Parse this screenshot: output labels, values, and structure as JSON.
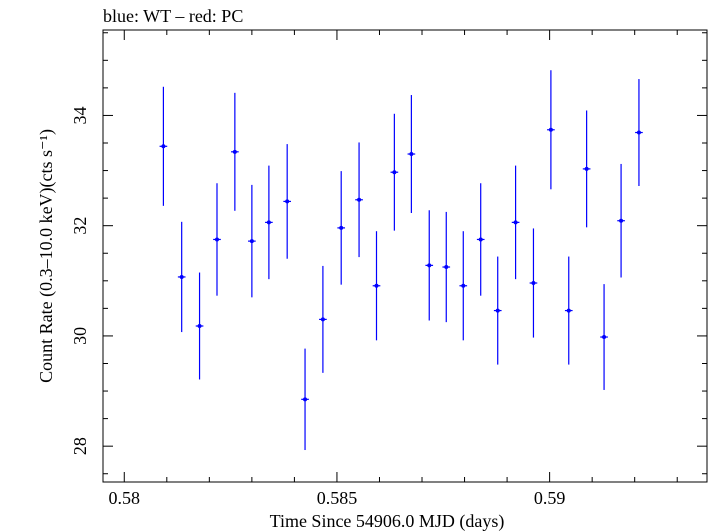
{
  "chart_data": {
    "type": "scatter",
    "title": "blue: WT – red: PC",
    "xlabel": "Time Since 54906.0 MJD (days)",
    "ylabel": "Count Rate (0.3–10.0 keV)(cts s⁻¹)",
    "xlim": [
      0.5795,
      0.5937
    ],
    "ylim": [
      27.35,
      35.55
    ],
    "xticks": [
      0.58,
      0.585,
      0.59
    ],
    "xtick_labels": [
      "0.58",
      "0.585",
      "0.59"
    ],
    "yticks": [
      28,
      30,
      32,
      34
    ],
    "ytick_labels": [
      "28",
      "30",
      "32",
      "34"
    ],
    "grid": false,
    "series": [
      {
        "color": "#0000ff",
        "points": [
          {
            "x": 0.58092,
            "y": 33.44,
            "xerr": 9e-05,
            "yerr": 1.08
          },
          {
            "x": 0.58135,
            "y": 31.07,
            "xerr": 9e-05,
            "yerr": 1.0
          },
          {
            "x": 0.58177,
            "y": 30.18,
            "xerr": 9e-05,
            "yerr": 0.97
          },
          {
            "x": 0.58218,
            "y": 31.75,
            "xerr": 9e-05,
            "yerr": 1.02
          },
          {
            "x": 0.5826,
            "y": 33.34,
            "xerr": 9e-05,
            "yerr": 1.07
          },
          {
            "x": 0.583,
            "y": 31.72,
            "xerr": 9e-05,
            "yerr": 1.02
          },
          {
            "x": 0.5834,
            "y": 32.06,
            "xerr": 9e-05,
            "yerr": 1.03
          },
          {
            "x": 0.58383,
            "y": 32.44,
            "xerr": 9e-05,
            "yerr": 1.04
          },
          {
            "x": 0.58425,
            "y": 28.85,
            "xerr": 9e-05,
            "yerr": 0.92
          },
          {
            "x": 0.58467,
            "y": 30.3,
            "xerr": 9e-05,
            "yerr": 0.97
          },
          {
            "x": 0.5851,
            "y": 31.96,
            "xerr": 9e-05,
            "yerr": 1.03
          },
          {
            "x": 0.58552,
            "y": 32.47,
            "xerr": 9e-05,
            "yerr": 1.04
          },
          {
            "x": 0.58593,
            "y": 30.91,
            "xerr": 9e-05,
            "yerr": 0.99
          },
          {
            "x": 0.58635,
            "y": 32.97,
            "xerr": 9e-05,
            "yerr": 1.06
          },
          {
            "x": 0.58675,
            "y": 33.3,
            "xerr": 9e-05,
            "yerr": 1.07
          },
          {
            "x": 0.58717,
            "y": 31.28,
            "xerr": 9e-05,
            "yerr": 1.0
          },
          {
            "x": 0.58757,
            "y": 31.25,
            "xerr": 9e-05,
            "yerr": 1.0
          },
          {
            "x": 0.58797,
            "y": 30.91,
            "xerr": 9e-05,
            "yerr": 0.99
          },
          {
            "x": 0.58838,
            "y": 31.75,
            "xerr": 9e-05,
            "yerr": 1.02
          },
          {
            "x": 0.58878,
            "y": 30.46,
            "xerr": 9e-05,
            "yerr": 0.98
          },
          {
            "x": 0.5892,
            "y": 32.06,
            "xerr": 9e-05,
            "yerr": 1.03
          },
          {
            "x": 0.58962,
            "y": 30.96,
            "xerr": 9e-05,
            "yerr": 0.99
          },
          {
            "x": 0.59003,
            "y": 33.74,
            "xerr": 9e-05,
            "yerr": 1.08
          },
          {
            "x": 0.59045,
            "y": 30.46,
            "xerr": 9e-05,
            "yerr": 0.98
          },
          {
            "x": 0.59087,
            "y": 33.03,
            "xerr": 9e-05,
            "yerr": 1.06
          },
          {
            "x": 0.59128,
            "y": 29.98,
            "xerr": 9e-05,
            "yerr": 0.96
          },
          {
            "x": 0.59168,
            "y": 32.09,
            "xerr": 9e-05,
            "yerr": 1.03
          },
          {
            "x": 0.5921,
            "y": 33.69,
            "xerr": 9e-05,
            "yerr": 0.97
          }
        ]
      }
    ]
  }
}
